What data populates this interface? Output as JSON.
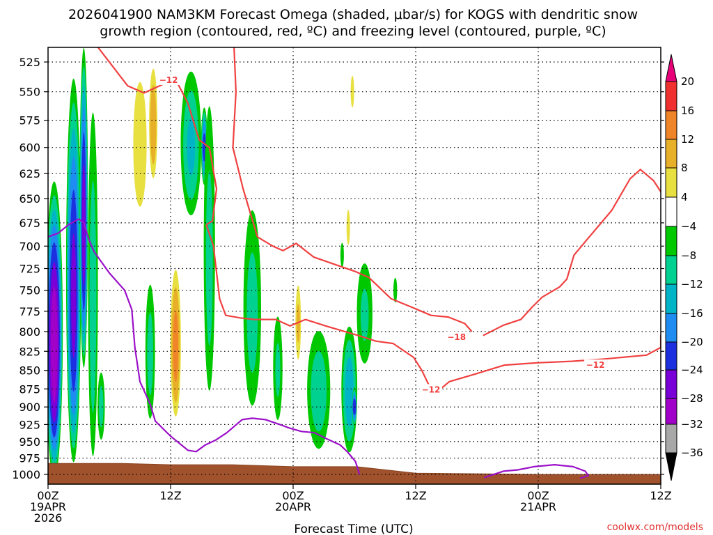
{
  "chart_data": {
    "type": "heatmap",
    "title_line1": "2026041900 NAM3KM Forecast Omega (shaded, μbar/s) for KOGS with dendritic snow",
    "title_line2": "growth region (contoured, red, ºC) and freezing level (contoured, purple, ºC)",
    "xlabel": "Forecast Time (UTC)",
    "credit": "coolwx.com/models",
    "xlim_hours": [
      0,
      60
    ],
    "x_ticks": [
      {
        "hour": 0,
        "lines": [
          "00Z",
          "19APR",
          "2026"
        ]
      },
      {
        "hour": 12,
        "lines": [
          "12Z"
        ]
      },
      {
        "hour": 24,
        "lines": [
          "00Z",
          "20APR"
        ]
      },
      {
        "hour": 36,
        "lines": [
          "12Z"
        ]
      },
      {
        "hour": 48,
        "lines": [
          "00Z",
          "21APR"
        ]
      },
      {
        "hour": 60,
        "lines": [
          "12Z"
        ]
      }
    ],
    "ylim_hpa": [
      1000,
      510
    ],
    "y_ticks": [
      525,
      550,
      575,
      600,
      625,
      650,
      675,
      700,
      725,
      750,
      775,
      800,
      825,
      850,
      875,
      900,
      925,
      950,
      975,
      1000
    ],
    "grid": true,
    "colorbar": {
      "labels": [
        "20",
        "16",
        "12",
        "8",
        "4",
        "−4",
        "−8",
        "−12",
        "−16",
        "−20",
        "−24",
        "−28",
        "−32",
        "−36"
      ],
      "bins": [
        {
          "range": [
            20,
            99
          ],
          "color": "#e8007a"
        },
        {
          "range": [
            16,
            20
          ],
          "color": "#f0302e"
        },
        {
          "range": [
            12,
            16
          ],
          "color": "#f08428"
        },
        {
          "range": [
            8,
            12
          ],
          "color": "#e8b028"
        },
        {
          "range": [
            4,
            8
          ],
          "color": "#e8e040"
        },
        {
          "range": [
            -4,
            4
          ],
          "color": "#ffffff"
        },
        {
          "range": [
            -8,
            -4
          ],
          "color": "#00c800"
        },
        {
          "range": [
            -12,
            -8
          ],
          "color": "#00d090"
        },
        {
          "range": [
            -16,
            -12
          ],
          "color": "#00b4c8"
        },
        {
          "range": [
            -20,
            -16
          ],
          "color": "#1e8cf0"
        },
        {
          "range": [
            -24,
            -20
          ],
          "color": "#1c30e0"
        },
        {
          "range": [
            -28,
            -24
          ],
          "color": "#7a00d8"
        },
        {
          "range": [
            -32,
            -28
          ],
          "color": "#a000c8"
        },
        {
          "range": [
            -36,
            -32
          ],
          "color": "#a8a8a8"
        },
        {
          "range": [
            -99,
            -36
          ],
          "color": "#000000"
        }
      ]
    },
    "omega_features": [
      {
        "hour": 0.6,
        "p_center": 820,
        "p_half": 200,
        "h_half": 0.9,
        "value": -31
      },
      {
        "hour": 2.5,
        "p_center": 760,
        "p_half": 240,
        "h_half": 0.8,
        "value": -25
      },
      {
        "hour": 3.5,
        "p_center": 680,
        "p_half": 180,
        "h_half": 0.45,
        "value": -26
      },
      {
        "hour": 4.4,
        "p_center": 770,
        "p_half": 250,
        "h_half": 0.6,
        "value": -10
      },
      {
        "hour": 5.2,
        "p_center": 900,
        "p_half": 60,
        "h_half": 0.45,
        "value": -9
      },
      {
        "hour": 9.0,
        "p_center": 600,
        "p_half": 80,
        "h_half": 0.9,
        "value": 7
      },
      {
        "hour": 10.3,
        "p_center": 580,
        "p_half": 60,
        "h_half": 0.5,
        "value": 11
      },
      {
        "hour": 10.0,
        "p_center": 830,
        "p_half": 110,
        "h_half": 0.6,
        "value": -9
      },
      {
        "hour": 12.5,
        "p_center": 820,
        "p_half": 110,
        "h_half": 0.6,
        "value": 13
      },
      {
        "hour": 14.0,
        "p_center": 600,
        "p_half": 80,
        "h_half": 1.2,
        "value": -12
      },
      {
        "hour": 15.3,
        "p_center": 600,
        "p_half": 40,
        "h_half": 0.35,
        "value": -21
      },
      {
        "hour": 15.8,
        "p_center": 720,
        "p_half": 200,
        "h_half": 0.7,
        "value": -9
      },
      {
        "hour": 20.0,
        "p_center": 780,
        "p_half": 150,
        "h_half": 1.1,
        "value": -9
      },
      {
        "hour": 22.5,
        "p_center": 850,
        "p_half": 90,
        "h_half": 0.6,
        "value": -8
      },
      {
        "hour": 24.5,
        "p_center": 790,
        "p_half": 60,
        "h_half": 0.35,
        "value": 8
      },
      {
        "hour": 26.5,
        "p_center": 880,
        "p_half": 100,
        "h_half": 1.4,
        "value": -10
      },
      {
        "hour": 29.5,
        "p_center": 880,
        "p_half": 100,
        "h_half": 0.9,
        "value": -14
      },
      {
        "hour": 30.0,
        "p_center": 900,
        "p_half": 30,
        "h_half": 0.25,
        "value": -22
      },
      {
        "hour": 31.0,
        "p_center": 780,
        "p_half": 80,
        "h_half": 1.0,
        "value": -8
      },
      {
        "hour": 34.0,
        "p_center": 750,
        "p_half": 20,
        "h_half": 0.25,
        "value": -7
      },
      {
        "hour": 29.8,
        "p_center": 550,
        "p_half": 20,
        "h_half": 0.25,
        "value": 6
      },
      {
        "hour": 29.4,
        "p_center": 680,
        "p_half": 30,
        "h_half": 0.2,
        "value": 5
      },
      {
        "hour": 28.8,
        "p_center": 710,
        "p_half": 20,
        "h_half": 0.2,
        "value": -6
      }
    ],
    "dendritic_zone_contours_hpa": [
      {
        "label": "−12",
        "label_hour": 11.8,
        "label_p": 540,
        "points": [
          [
            4.6,
            510
          ],
          [
            7.8,
            545
          ],
          [
            9.4,
            551
          ],
          [
            11.4,
            543
          ],
          [
            12.4,
            538
          ]
        ]
      },
      {
        "label": "",
        "points": [
          [
            12.4,
            538
          ],
          [
            13.7,
            560
          ],
          [
            14.8,
            593
          ],
          [
            15.8,
            600
          ],
          [
            16.5,
            640
          ],
          [
            16.1,
            673
          ],
          [
            15.5,
            677
          ]
        ]
      },
      {
        "label": "",
        "points": [
          [
            15.5,
            677
          ],
          [
            16.2,
            700
          ],
          [
            16.8,
            760
          ],
          [
            17.4,
            780
          ],
          [
            18.8,
            783
          ],
          [
            20.2,
            785
          ],
          [
            22.3,
            785
          ],
          [
            23.7,
            793
          ],
          [
            25.2,
            785
          ],
          [
            27.2,
            793
          ],
          [
            30.4,
            805
          ],
          [
            32.1,
            812
          ],
          [
            33.8,
            815
          ],
          [
            35.8,
            833
          ],
          [
            36.6,
            850
          ],
          [
            37.3,
            870
          ],
          [
            38.0,
            880
          ],
          [
            39.3,
            865
          ],
          [
            41.8,
            855
          ],
          [
            44.7,
            843
          ],
          [
            47.9,
            840
          ],
          [
            51.3,
            838
          ],
          [
            54.5,
            835
          ],
          [
            58.6,
            830
          ],
          [
            60.0,
            820
          ],
          [
            60.0,
            805
          ],
          [
            60.9,
            796
          ]
        ]
      },
      {
        "label": "−12",
        "label_hour": 53.6,
        "label_p": 843,
        "decorative": true
      },
      {
        "label": "−12",
        "label_hour": 37.5,
        "label_p": 876,
        "decorative": true
      },
      {
        "label": "",
        "points": [
          [
            18.2,
            510
          ],
          [
            18.4,
            550
          ],
          [
            18.1,
            600
          ],
          [
            19.1,
            640
          ],
          [
            20.5,
            690
          ],
          [
            22.0,
            700
          ],
          [
            23.0,
            705
          ],
          [
            24.3,
            697
          ],
          [
            26.0,
            712
          ],
          [
            28.0,
            720
          ],
          [
            30.0,
            728
          ],
          [
            31.4,
            735
          ],
          [
            33.6,
            760
          ],
          [
            35.6,
            770
          ],
          [
            37.5,
            780
          ],
          [
            39.2,
            782
          ],
          [
            40.8,
            790
          ],
          [
            41.5,
            800
          ]
        ]
      },
      {
        "label": "−18",
        "label_hour": 40.0,
        "label_p": 807,
        "points": [
          [
            42.6,
            805
          ],
          [
            44.6,
            792
          ],
          [
            46.3,
            785
          ],
          [
            47.4,
            770
          ],
          [
            48.4,
            758
          ],
          [
            50.1,
            746
          ],
          [
            50.8,
            737
          ],
          [
            51.5,
            710
          ],
          [
            53.0,
            690
          ],
          [
            55.2,
            662
          ],
          [
            57.0,
            630
          ],
          [
            58.0,
            621
          ],
          [
            59.3,
            632
          ],
          [
            60.0,
            643
          ],
          [
            61.0,
            650
          ]
        ]
      }
    ],
    "freezing_level_contours_hpa": [
      {
        "label": "",
        "points": [
          [
            0,
            690
          ],
          [
            1.0,
            686
          ],
          [
            2.0,
            677
          ],
          [
            3.0,
            671
          ],
          [
            3.5,
            675
          ],
          [
            4.0,
            693
          ],
          [
            4.5,
            706
          ],
          [
            6.0,
            730
          ],
          [
            7.5,
            750
          ],
          [
            8.2,
            773
          ],
          [
            8.5,
            820
          ],
          [
            9.0,
            865
          ],
          [
            10.0,
            896
          ],
          [
            10.5,
            920
          ],
          [
            12.0,
            942
          ],
          [
            13.7,
            963
          ],
          [
            14.5,
            965
          ],
          [
            15.4,
            955
          ],
          [
            16.4,
            948
          ],
          [
            17.5,
            937
          ],
          [
            19.0,
            918
          ],
          [
            20.0,
            916
          ],
          [
            21.3,
            918
          ],
          [
            22.7,
            925
          ],
          [
            23.6,
            930
          ],
          [
            24.8,
            935
          ],
          [
            26.1,
            937
          ],
          [
            27.3,
            946
          ],
          [
            28.6,
            955
          ],
          [
            29.3,
            965
          ],
          [
            30.1,
            980
          ],
          [
            30.5,
            1000
          ]
        ]
      },
      {
        "label": "",
        "points": [
          [
            42.7,
            1005
          ],
          [
            44.6,
            995
          ],
          [
            46.0,
            993
          ],
          [
            47.6,
            988
          ],
          [
            49.6,
            985
          ],
          [
            51.4,
            988
          ],
          [
            52.6,
            995
          ],
          [
            52.9,
            1002
          ],
          [
            52.1,
            1006
          ]
        ]
      }
    ],
    "terrain_hpa": [
      [
        0,
        983
      ],
      [
        7.2,
        983
      ],
      [
        12.0,
        985
      ],
      [
        18.0,
        985
      ],
      [
        24.0,
        988
      ],
      [
        30.2,
        988
      ],
      [
        36.0,
        998
      ],
      [
        48.0,
        1000
      ],
      [
        60.0,
        1000
      ]
    ]
  }
}
